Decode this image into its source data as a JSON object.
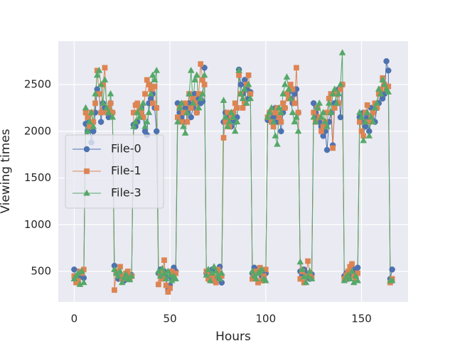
{
  "chart_data": {
    "type": "line",
    "xlabel": "Hours",
    "ylabel": "Viewing times",
    "x": [
      0,
      1,
      2,
      3,
      4,
      5,
      6,
      7,
      8,
      9,
      10,
      11,
      12,
      13,
      14,
      15,
      16,
      17,
      18,
      19,
      20,
      21,
      22,
      23,
      24,
      25,
      26,
      27,
      28,
      29,
      30,
      31,
      32,
      33,
      34,
      35,
      36,
      37,
      38,
      39,
      40,
      41,
      42,
      43,
      44,
      45,
      46,
      47,
      48,
      49,
      50,
      51,
      52,
      53,
      54,
      55,
      56,
      57,
      58,
      59,
      60,
      61,
      62,
      63,
      64,
      65,
      66,
      67,
      68,
      69,
      70,
      71,
      72,
      73,
      74,
      75,
      76,
      77,
      78,
      79,
      80,
      81,
      82,
      83,
      84,
      85,
      86,
      87,
      88,
      89,
      90,
      91,
      92,
      93,
      94,
      95,
      96,
      97,
      98,
      99,
      100,
      101,
      102,
      103,
      104,
      105,
      106,
      107,
      108,
      109,
      110,
      111,
      112,
      113,
      114,
      115,
      116,
      117,
      118,
      119,
      120,
      121,
      122,
      123,
      124,
      125,
      126,
      127,
      128,
      129,
      130,
      131,
      132,
      133,
      134,
      135,
      136,
      137,
      138,
      139,
      140,
      141,
      142,
      143,
      144,
      145,
      146,
      147,
      148,
      149,
      150,
      151,
      152,
      153,
      154,
      155,
      156,
      157,
      158,
      159,
      160,
      161,
      162,
      163,
      164,
      165,
      166
    ],
    "series": [
      {
        "name": "File-0",
        "color": "#4c72b0",
        "marker": "circle",
        "values": [
          520,
          400,
          380,
          450,
          470,
          430,
          2080,
          2000,
          2100,
          1880,
          2000,
          2200,
          2450,
          2400,
          2100,
          2300,
          2250,
          2200,
          2150,
          2300,
          2200,
          560,
          480,
          420,
          450,
          430,
          400,
          450,
          420,
          440,
          460,
          2070,
          2050,
          2100,
          2200,
          2250,
          2150,
          2000,
          1960,
          2300,
          2350,
          2400,
          2250,
          2000,
          480,
          520,
          460,
          500,
          440,
          300,
          350,
          420,
          540,
          500,
          2300,
          2200,
          2150,
          2100,
          2250,
          2200,
          2300,
          2150,
          2250,
          2400,
          2200,
          2350,
          2300,
          2320,
          2680,
          480,
          500,
          460,
          520,
          440,
          420,
          500,
          550,
          380,
          2100,
          2200,
          2150,
          2100,
          2050,
          2200,
          2100,
          2150,
          2660,
          2500,
          2400,
          2550,
          2450,
          2350,
          2420,
          480,
          540,
          500,
          520,
          480,
          450,
          420,
          480,
          2120,
          2200,
          2100,
          2150,
          2250,
          2100,
          2150,
          2000,
          2200,
          2250,
          2400,
          2420,
          2350,
          2300,
          2400,
          2450,
          2200,
          500,
          460,
          520,
          450,
          480,
          420,
          470,
          2300,
          2200,
          2150,
          2100,
          2050,
          1950,
          2000,
          1800,
          2100,
          2200,
          1850,
          2300,
          2400,
          2450,
          2150,
          2500,
          450,
          480,
          420,
          500,
          460,
          520,
          480,
          540,
          2150,
          2100,
          2200,
          2050,
          2150,
          2000,
          2250,
          2200,
          2100,
          2250,
          2300,
          2400,
          2350,
          2400,
          2750,
          2650,
          420,
          520
        ]
      },
      {
        "name": "File-1",
        "color": "#dd8452",
        "marker": "square",
        "values": [
          450,
          380,
          400,
          500,
          480,
          520,
          2200,
          2150,
          2050,
          2200,
          2100,
          2300,
          2650,
          2400,
          2200,
          2500,
          2680,
          2200,
          2250,
          2300,
          2200,
          300,
          500,
          460,
          550,
          420,
          440,
          480,
          500,
          420,
          450,
          2200,
          2280,
          2300,
          2250,
          2200,
          2150,
          2400,
          2550,
          2500,
          2450,
          2300,
          2480,
          2250,
          360,
          480,
          420,
          620,
          350,
          280,
          320,
          500,
          450,
          480,
          2150,
          2250,
          2100,
          2200,
          2300,
          2100,
          2400,
          2250,
          2350,
          2300,
          2200,
          2400,
          2720,
          2550,
          2500,
          500,
          420,
          460,
          400,
          440,
          380,
          520,
          480,
          450,
          1930,
          2100,
          2200,
          2050,
          2150,
          2200,
          2300,
          2250,
          2600,
          2400,
          2250,
          2300,
          2500,
          2600,
          2400,
          420,
          460,
          500,
          380,
          540,
          400,
          450,
          520,
          2150,
          2200,
          2100,
          2050,
          2200,
          2250,
          2150,
          2100,
          2300,
          2250,
          2400,
          2350,
          2500,
          2450,
          2300,
          2680,
          2200,
          420,
          500,
          380,
          450,
          610,
          480,
          430,
          2200,
          2100,
          2250,
          2150,
          2000,
          2050,
          2100,
          2200,
          2350,
          2400,
          1820,
          2250,
          2400,
          2300,
          2450,
          2500,
          420,
          460,
          500,
          550,
          580,
          450,
          420,
          480,
          2100,
          2000,
          1950,
          2200,
          2280,
          2100,
          2150,
          2200,
          2300,
          2250,
          2400,
          2450,
          2570,
          2500,
          2450,
          2480,
          380,
          420
        ]
      },
      {
        "name": "File-3",
        "color": "#55a868",
        "marker": "triangle",
        "values": [
          420,
          450,
          480,
          360,
          500,
          380,
          2250,
          2000,
          2100,
          2200,
          2050,
          2400,
          2600,
          2650,
          2500,
          2300,
          2550,
          2250,
          2200,
          2400,
          2150,
          520,
          480,
          450,
          500,
          380,
          430,
          470,
          420,
          410,
          450,
          2050,
          2100,
          2200,
          2150,
          2250,
          2300,
          2050,
          2100,
          2200,
          2400,
          2600,
          2550,
          2650,
          500,
          450,
          530,
          480,
          420,
          500,
          460,
          400,
          450,
          420,
          2100,
          2250,
          2300,
          2050,
          1980,
          2200,
          2400,
          2650,
          2300,
          2550,
          2600,
          2250,
          2350,
          2400,
          2600,
          460,
          520,
          400,
          480,
          550,
          500,
          450,
          420,
          480,
          2330,
          2150,
          2050,
          2100,
          2200,
          2150,
          2000,
          2100,
          2650,
          2400,
          2350,
          2450,
          2300,
          2500,
          2350,
          500,
          450,
          420,
          480,
          500,
          520,
          420,
          400,
          2150,
          2200,
          2250,
          2100,
          1950,
          1860,
          2250,
          2200,
          2400,
          2500,
          2580,
          2450,
          2350,
          2200,
          2100,
          2150,
          2000,
          600,
          520,
          440,
          380,
          450,
          500,
          420,
          2150,
          2100,
          2250,
          2300,
          2150,
          2200,
          2100,
          2050,
          2300,
          2200,
          2400,
          2450,
          2300,
          2400,
          2500,
          2840,
          400,
          440,
          460,
          420,
          500,
          380,
          450,
          400,
          2200,
          2150,
          1900,
          2100,
          2200,
          1950,
          2150,
          2100,
          2250,
          2300,
          2450,
          2400,
          2550,
          2500,
          2450,
          2420,
          400,
          400
        ]
      }
    ],
    "xlim": [
      -8.3,
      174.3
    ],
    "xticks": [
      0,
      50,
      100,
      150
    ],
    "ylim": [
      173,
      2964
    ],
    "yticks": [
      500,
      1000,
      1500,
      2000,
      2500
    ],
    "grid": true,
    "legend": "center left"
  }
}
